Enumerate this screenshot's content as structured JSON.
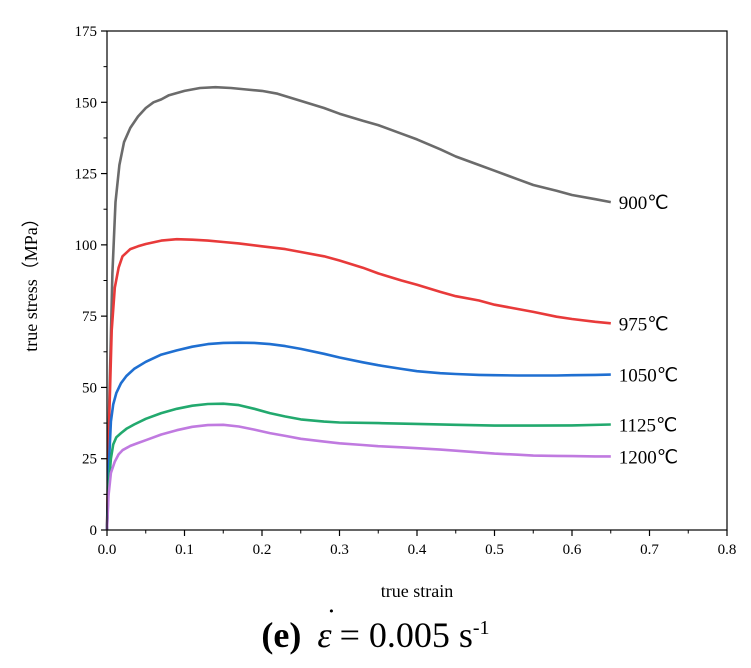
{
  "chart_data": {
    "type": "line",
    "xlabel": "true strain",
    "ylabel": "true stress（MPa）",
    "xlim": [
      0,
      0.8
    ],
    "ylim": [
      0,
      175
    ],
    "xticks": [
      0,
      0.1,
      0.2,
      0.3,
      0.4,
      0.5,
      0.6,
      0.7,
      0.8
    ],
    "xtick_labels": [
      "0.0",
      "0.1",
      "0.2",
      "0.3",
      "0.4",
      "0.5",
      "0.6",
      "0.7",
      "0.8"
    ],
    "yticks": [
      0,
      25,
      50,
      75,
      100,
      125,
      150,
      175
    ],
    "ytick_labels": [
      "0",
      "25",
      "50",
      "75",
      "100",
      "125",
      "150",
      "175"
    ],
    "grid": false,
    "series": [
      {
        "name": "900℃",
        "color": "#6b6b6b",
        "points": [
          [
            0,
            0
          ],
          [
            0.003,
            45
          ],
          [
            0.007,
            90
          ],
          [
            0.011,
            115
          ],
          [
            0.016,
            128
          ],
          [
            0.022,
            136
          ],
          [
            0.03,
            141
          ],
          [
            0.04,
            145
          ],
          [
            0.05,
            148
          ],
          [
            0.06,
            150
          ],
          [
            0.07,
            151
          ],
          [
            0.08,
            152.5
          ],
          [
            0.1,
            154
          ],
          [
            0.12,
            155
          ],
          [
            0.14,
            155.3
          ],
          [
            0.16,
            155
          ],
          [
            0.18,
            154.5
          ],
          [
            0.2,
            154
          ],
          [
            0.22,
            153
          ],
          [
            0.25,
            150.5
          ],
          [
            0.28,
            148
          ],
          [
            0.3,
            146
          ],
          [
            0.33,
            143.5
          ],
          [
            0.35,
            142
          ],
          [
            0.38,
            139
          ],
          [
            0.4,
            137
          ],
          [
            0.43,
            133.5
          ],
          [
            0.45,
            131
          ],
          [
            0.48,
            128
          ],
          [
            0.5,
            126
          ],
          [
            0.53,
            123
          ],
          [
            0.55,
            121
          ],
          [
            0.58,
            119
          ],
          [
            0.6,
            117.5
          ],
          [
            0.63,
            116
          ],
          [
            0.65,
            115
          ]
        ]
      },
      {
        "name": "975℃",
        "color": "#e83a3a",
        "points": [
          [
            0,
            0
          ],
          [
            0.003,
            40
          ],
          [
            0.006,
            70
          ],
          [
            0.01,
            85
          ],
          [
            0.015,
            92
          ],
          [
            0.02,
            96
          ],
          [
            0.03,
            98.5
          ],
          [
            0.04,
            99.5
          ],
          [
            0.05,
            100.3
          ],
          [
            0.07,
            101.5
          ],
          [
            0.09,
            102
          ],
          [
            0.11,
            101.8
          ],
          [
            0.13,
            101.5
          ],
          [
            0.15,
            101
          ],
          [
            0.17,
            100.5
          ],
          [
            0.2,
            99.5
          ],
          [
            0.23,
            98.5
          ],
          [
            0.25,
            97.5
          ],
          [
            0.28,
            96
          ],
          [
            0.3,
            94.5
          ],
          [
            0.33,
            92
          ],
          [
            0.35,
            90
          ],
          [
            0.38,
            87.5
          ],
          [
            0.4,
            86
          ],
          [
            0.43,
            83.5
          ],
          [
            0.45,
            82
          ],
          [
            0.48,
            80.5
          ],
          [
            0.5,
            79
          ],
          [
            0.53,
            77.5
          ],
          [
            0.55,
            76.5
          ],
          [
            0.58,
            74.8
          ],
          [
            0.6,
            74
          ],
          [
            0.63,
            73
          ],
          [
            0.65,
            72.5
          ]
        ]
      },
      {
        "name": "1050℃",
        "color": "#1f6fd1",
        "points": [
          [
            0,
            0
          ],
          [
            0.002,
            20
          ],
          [
            0.005,
            38
          ],
          [
            0.008,
            44
          ],
          [
            0.012,
            48
          ],
          [
            0.018,
            51.5
          ],
          [
            0.025,
            54
          ],
          [
            0.035,
            56.5
          ],
          [
            0.05,
            59
          ],
          [
            0.07,
            61.5
          ],
          [
            0.09,
            63
          ],
          [
            0.11,
            64.3
          ],
          [
            0.13,
            65.2
          ],
          [
            0.15,
            65.6
          ],
          [
            0.17,
            65.7
          ],
          [
            0.19,
            65.6
          ],
          [
            0.21,
            65.2
          ],
          [
            0.23,
            64.5
          ],
          [
            0.25,
            63.5
          ],
          [
            0.28,
            61.8
          ],
          [
            0.3,
            60.5
          ],
          [
            0.33,
            58.8
          ],
          [
            0.35,
            57.8
          ],
          [
            0.38,
            56.5
          ],
          [
            0.4,
            55.7
          ],
          [
            0.43,
            55
          ],
          [
            0.45,
            54.7
          ],
          [
            0.48,
            54.4
          ],
          [
            0.5,
            54.3
          ],
          [
            0.53,
            54.2
          ],
          [
            0.55,
            54.2
          ],
          [
            0.58,
            54.2
          ],
          [
            0.6,
            54.3
          ],
          [
            0.63,
            54.4
          ],
          [
            0.65,
            54.5
          ]
        ]
      },
      {
        "name": "1125℃",
        "color": "#22a96e",
        "points": [
          [
            0,
            0
          ],
          [
            0.002,
            15
          ],
          [
            0.005,
            25
          ],
          [
            0.008,
            30
          ],
          [
            0.012,
            32.5
          ],
          [
            0.018,
            34
          ],
          [
            0.025,
            35.5
          ],
          [
            0.035,
            37
          ],
          [
            0.05,
            39
          ],
          [
            0.07,
            41
          ],
          [
            0.09,
            42.5
          ],
          [
            0.11,
            43.6
          ],
          [
            0.13,
            44.2
          ],
          [
            0.15,
            44.3
          ],
          [
            0.17,
            43.8
          ],
          [
            0.19,
            42.5
          ],
          [
            0.21,
            41
          ],
          [
            0.23,
            39.8
          ],
          [
            0.25,
            38.8
          ],
          [
            0.28,
            38
          ],
          [
            0.3,
            37.7
          ],
          [
            0.35,
            37.5
          ],
          [
            0.4,
            37.2
          ],
          [
            0.45,
            36.9
          ],
          [
            0.5,
            36.6
          ],
          [
            0.55,
            36.6
          ],
          [
            0.6,
            36.7
          ],
          [
            0.65,
            37
          ]
        ]
      },
      {
        "name": "1200℃",
        "color": "#c07ae0",
        "points": [
          [
            0,
            0
          ],
          [
            0.002,
            12
          ],
          [
            0.005,
            20
          ],
          [
            0.01,
            24
          ],
          [
            0.015,
            26.5
          ],
          [
            0.02,
            28
          ],
          [
            0.03,
            29.5
          ],
          [
            0.04,
            30.5
          ],
          [
            0.05,
            31.5
          ],
          [
            0.07,
            33.5
          ],
          [
            0.09,
            35
          ],
          [
            0.11,
            36.2
          ],
          [
            0.13,
            36.8
          ],
          [
            0.15,
            36.9
          ],
          [
            0.17,
            36.3
          ],
          [
            0.19,
            35.2
          ],
          [
            0.21,
            34
          ],
          [
            0.23,
            33
          ],
          [
            0.25,
            32
          ],
          [
            0.28,
            31
          ],
          [
            0.3,
            30.4
          ],
          [
            0.33,
            29.8
          ],
          [
            0.35,
            29.4
          ],
          [
            0.38,
            29
          ],
          [
            0.4,
            28.7
          ],
          [
            0.43,
            28.2
          ],
          [
            0.45,
            27.8
          ],
          [
            0.48,
            27.2
          ],
          [
            0.5,
            26.8
          ],
          [
            0.53,
            26.4
          ],
          [
            0.55,
            26.1
          ],
          [
            0.58,
            26
          ],
          [
            0.6,
            25.9
          ],
          [
            0.63,
            25.8
          ],
          [
            0.65,
            25.8
          ]
        ]
      }
    ],
    "caption": {
      "panel": "(e)",
      "rate_symbol": "ε",
      "rate_dot": "˙",
      "rate_value": "= 0.005 s",
      "rate_exponent": "-1"
    }
  }
}
